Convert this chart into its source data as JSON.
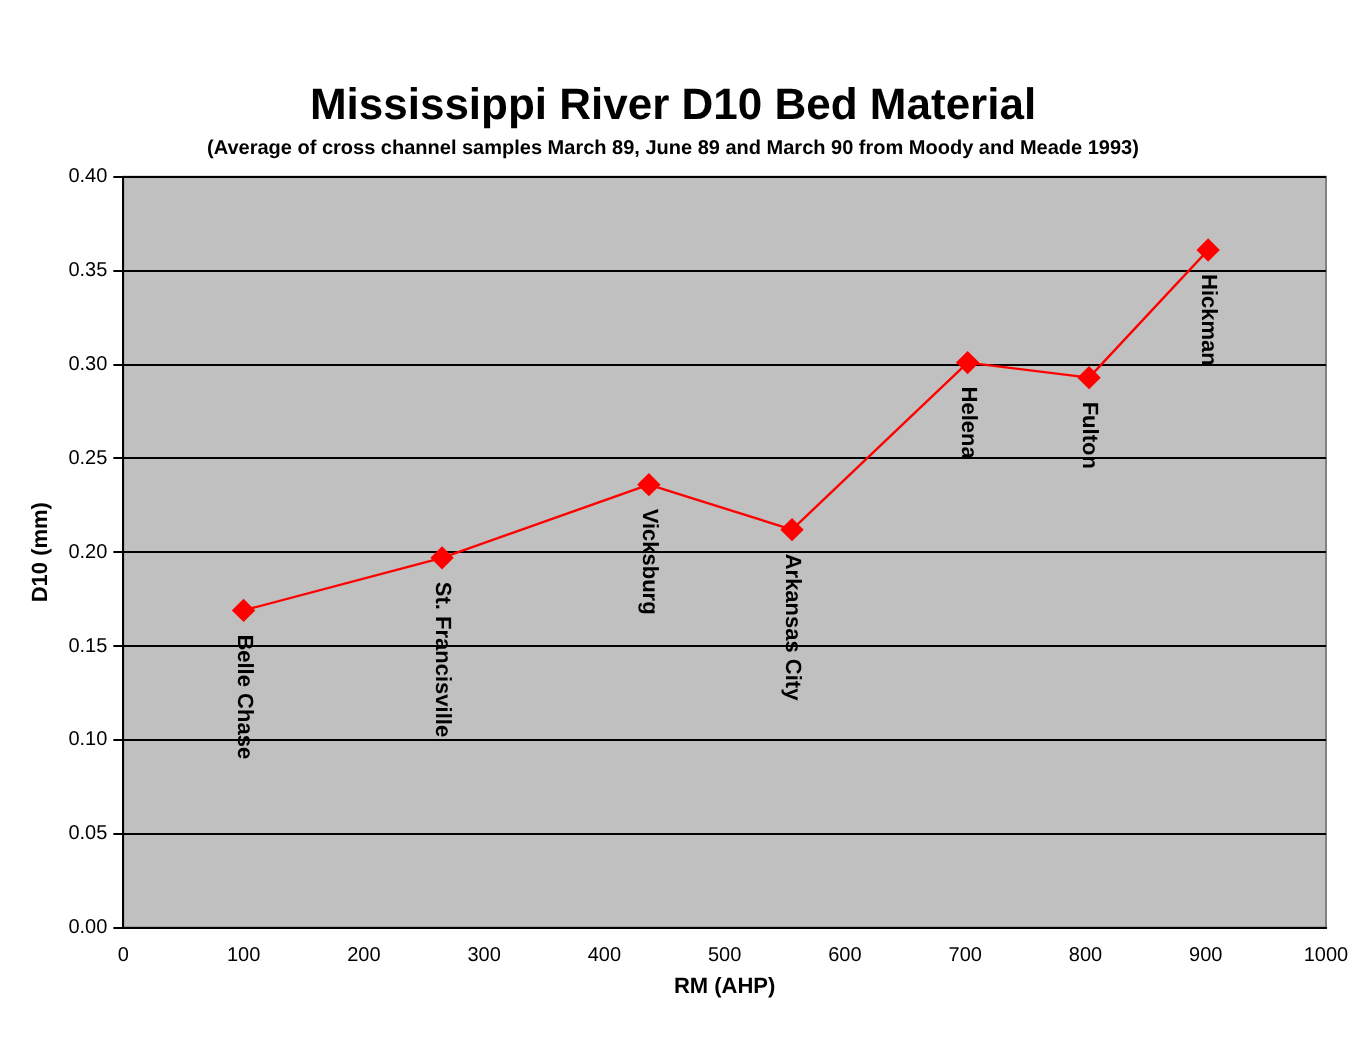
{
  "chart_data": {
    "type": "line",
    "title": "Mississippi River D10 Bed Material",
    "subtitle": "(Average of cross channel samples March 89, June 89 and March 90 from Moody and Meade 1993)",
    "xlabel": "RM (AHP)",
    "ylabel": "D10 (mm)",
    "x": [
      100,
      265,
      437,
      556,
      702,
      803,
      902
    ],
    "series": [
      {
        "color": "#ff0000",
        "values": [
          0.169,
          0.197,
          0.236,
          0.212,
          0.301,
          0.293,
          0.361
        ]
      }
    ],
    "xlim": [
      0,
      1000
    ],
    "xticks": [
      0,
      100,
      200,
      300,
      400,
      500,
      600,
      700,
      800,
      900,
      1000
    ],
    "ylim": [
      0,
      0.4
    ],
    "yticks": [
      {
        "value": 0,
        "label": "0.00"
      },
      {
        "value": 0.05,
        "label": "0.05"
      },
      {
        "value": 0.1,
        "label": "0.10"
      },
      {
        "value": 0.15,
        "label": "0.15"
      },
      {
        "value": 0.2,
        "label": "0.20"
      },
      {
        "value": 0.25,
        "label": "0.25"
      },
      {
        "value": 0.3,
        "label": "0.30"
      },
      {
        "value": 0.35,
        "label": "0.35"
      },
      {
        "value": 0.4,
        "label": "0.40"
      }
    ],
    "grid": "y",
    "legend": false,
    "marker": "diamond",
    "line_style": "solid",
    "annotations": [
      {
        "text": "Belle Chase",
        "x": 100,
        "y": 0.169
      },
      {
        "text": "St. Francisville",
        "x": 265,
        "y": 0.197
      },
      {
        "text": "Vicksburg",
        "x": 437,
        "y": 0.236
      },
      {
        "text": "Arkansas City",
        "x": 556,
        "y": 0.212
      },
      {
        "text": "Helena",
        "x": 702,
        "y": 0.301
      },
      {
        "text": "Fulton",
        "x": 803,
        "y": 0.293
      },
      {
        "text": "Hickman",
        "x": 902,
        "y": 0.361
      }
    ]
  }
}
